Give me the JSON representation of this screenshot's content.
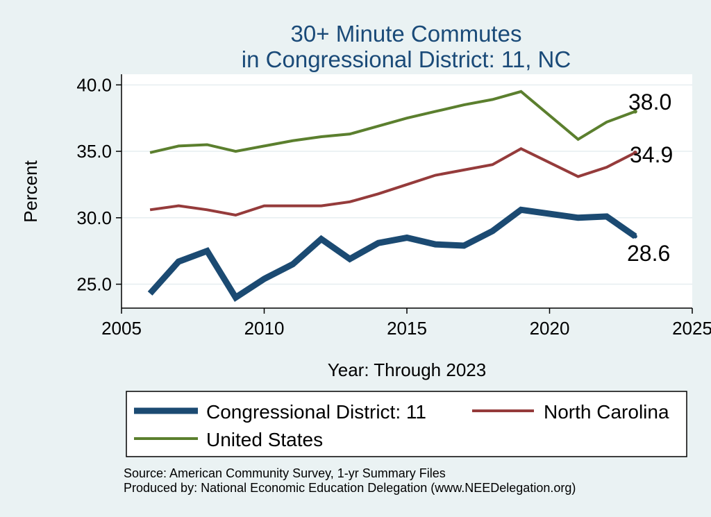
{
  "chart_data": {
    "type": "line",
    "title_lines": [
      "30+ Minute Commutes",
      "in Congressional District:  11, NC"
    ],
    "xlabel": "Year: Through 2023",
    "ylabel": "Percent",
    "xlim": [
      2005,
      2025
    ],
    "ylim": [
      23.2,
      40.8
    ],
    "x_ticks": [
      2005,
      2010,
      2015,
      2020,
      2025
    ],
    "y_ticks": [
      25.0,
      30.0,
      35.0,
      40.0
    ],
    "grid": true,
    "x": [
      2006,
      2007,
      2008,
      2009,
      2010,
      2011,
      2012,
      2013,
      2014,
      2015,
      2016,
      2017,
      2018,
      2019,
      2021,
      2022,
      2023
    ],
    "series": [
      {
        "key": "us",
        "name": "United States",
        "color": "#5b7f2e",
        "values": [
          34.9,
          35.4,
          35.5,
          35.0,
          35.4,
          35.8,
          36.1,
          36.3,
          36.9,
          37.5,
          38.0,
          38.5,
          38.9,
          39.5,
          35.9,
          37.2,
          38.0
        ],
        "end_label": "38.0"
      },
      {
        "key": "nc",
        "name": "North Carolina",
        "color": "#953b3b",
        "values": [
          30.6,
          30.9,
          30.6,
          30.2,
          30.9,
          30.9,
          30.9,
          31.2,
          31.8,
          32.5,
          33.2,
          33.6,
          34.0,
          35.2,
          33.1,
          33.8,
          34.9
        ],
        "end_label": "34.9"
      },
      {
        "key": "cd",
        "name": "Congressional District:  11",
        "color": "#1b4a72",
        "values": [
          24.3,
          26.7,
          27.5,
          24.0,
          25.4,
          26.5,
          28.4,
          26.9,
          28.1,
          28.5,
          28.0,
          27.9,
          29.0,
          30.6,
          30.0,
          30.1,
          28.6
        ],
        "end_label": "28.6"
      }
    ]
  },
  "legend": {
    "entries": [
      {
        "key": "cd",
        "label": "Congressional District:  11"
      },
      {
        "key": "nc",
        "label": "North Carolina"
      },
      {
        "key": "us",
        "label": "United States"
      }
    ]
  },
  "footer": {
    "source": "Source: American Community Survey, 1-yr Summary Files",
    "produced": "Produced by: National Economic Education Delegation (www.NEEDelegation.org)"
  }
}
